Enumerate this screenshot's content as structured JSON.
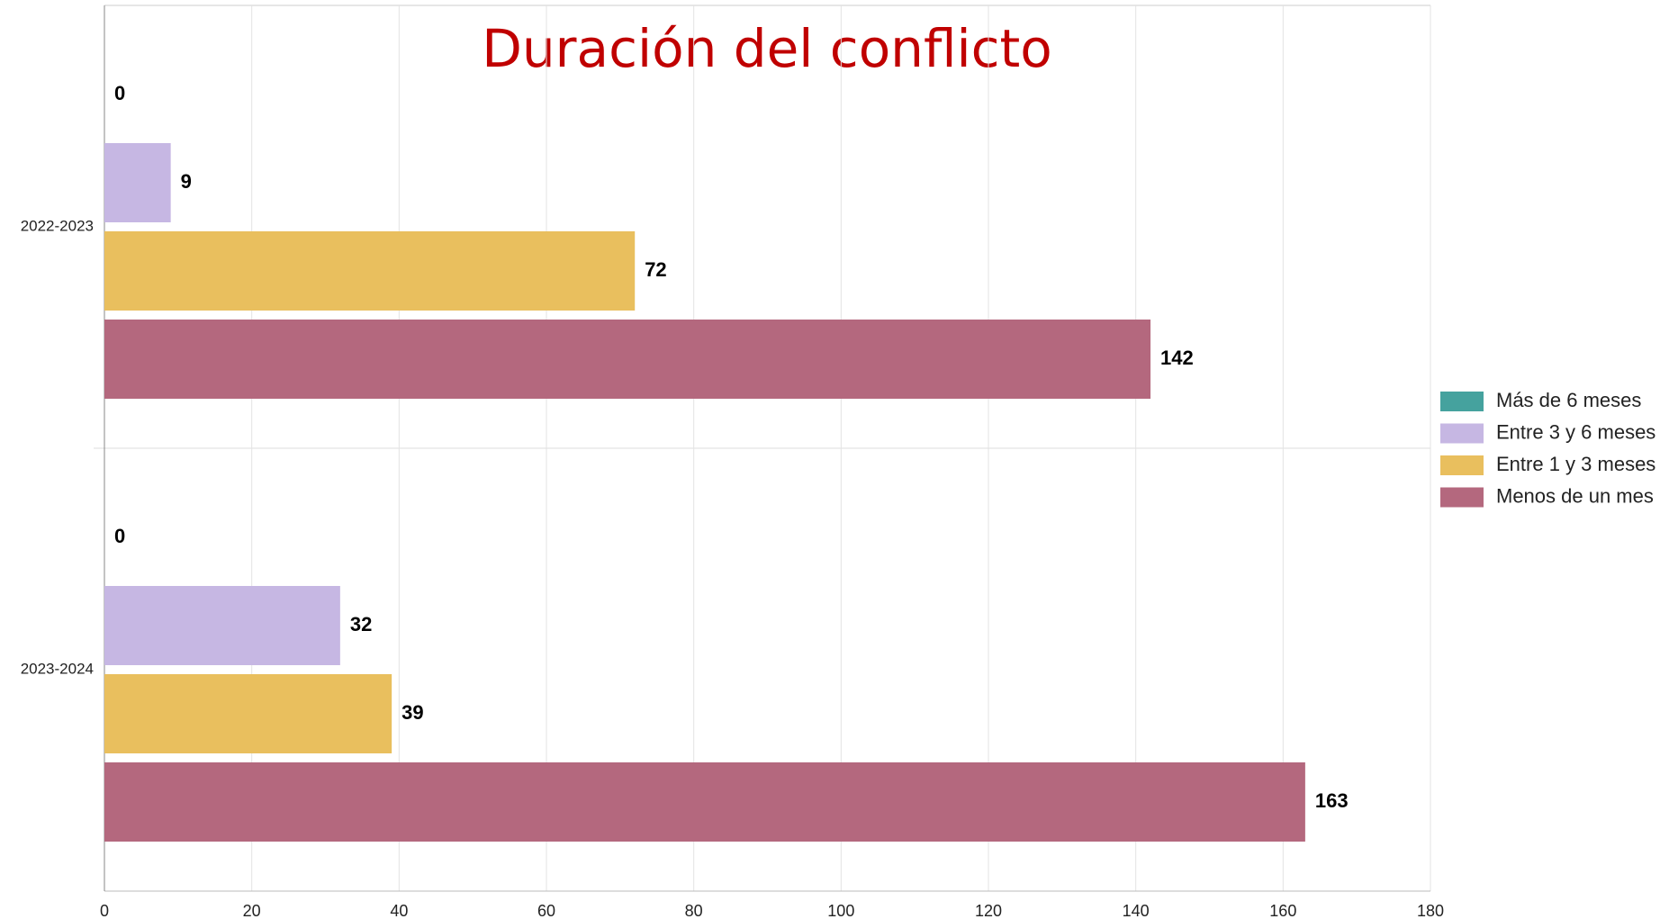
{
  "chart_data": {
    "type": "hbar",
    "title": "Duración del conflicto",
    "categories": [
      "2022-2023",
      "2023-2024"
    ],
    "series": [
      {
        "name": "Más de 6 meses",
        "color": "#45a29e",
        "values": [
          0,
          0
        ]
      },
      {
        "name": "Entre 3 y 6 meses",
        "color": "#c6b7e3",
        "values": [
          9,
          32
        ]
      },
      {
        "name": "Entre 1 y 3 meses",
        "color": "#e9bf5e",
        "values": [
          72,
          39
        ]
      },
      {
        "name": "Menos de un mes",
        "color": "#b4687e",
        "values": [
          142,
          163
        ]
      }
    ],
    "xlim": [
      0,
      180
    ],
    "xticks": [
      0,
      20,
      40,
      60,
      80,
      100,
      120,
      140,
      160,
      180
    ],
    "grid": true,
    "legend": "right"
  }
}
